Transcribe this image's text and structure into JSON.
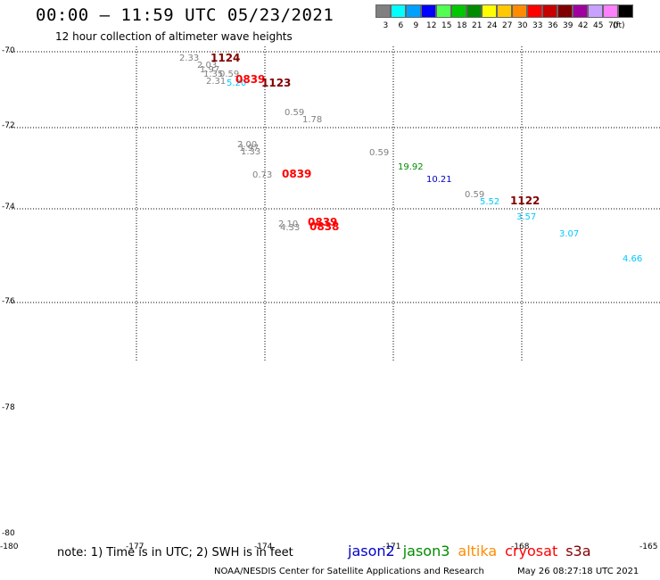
{
  "header": {
    "title": "00:00 – 11:59 UTC 05/23/2021",
    "subtitle": "12 hour collection of altimeter wave heights"
  },
  "colorbar": {
    "unit": "(ft)",
    "swatches": [
      {
        "color": "#808080",
        "label": "3"
      },
      {
        "color": "#00ffff",
        "label": "6"
      },
      {
        "color": "#00a0ff",
        "label": "9"
      },
      {
        "color": "#0000ff",
        "label": "12"
      },
      {
        "color": "#50ff50",
        "label": "15"
      },
      {
        "color": "#00c800",
        "label": "18"
      },
      {
        "color": "#008c00",
        "label": "21"
      },
      {
        "color": "#ffff00",
        "label": "24"
      },
      {
        "color": "#ffc800",
        "label": "27"
      },
      {
        "color": "#ff8c00",
        "label": "30"
      },
      {
        "color": "#ff0000",
        "label": "33"
      },
      {
        "color": "#c80000",
        "label": "36"
      },
      {
        "color": "#800000",
        "label": "39"
      },
      {
        "color": "#a000a0",
        "label": "42"
      },
      {
        "color": "#c8a0ff",
        "label": "45"
      },
      {
        "color": "#ff80ff",
        "label": "70"
      },
      {
        "color": "#000000",
        "label": ""
      }
    ]
  },
  "axes": {
    "y_labels": [
      "-70",
      "-72",
      "-74",
      "-76",
      "-78",
      "-80"
    ],
    "x_labels": [
      "-180",
      "-177",
      "-174",
      "-171",
      "-168",
      "-165"
    ]
  },
  "observations": [
    {
      "text": "2.33",
      "color": "#808080",
      "kind": "swh"
    },
    {
      "text": "1124",
      "color": "#800000",
      "kind": "time"
    },
    {
      "text": "2.03",
      "color": "#808080",
      "kind": "swh"
    },
    {
      "text": "1.97",
      "color": "#808080",
      "kind": "swh"
    },
    {
      "text": "1.35",
      "color": "#808080",
      "kind": "swh"
    },
    {
      "text": "0.59",
      "color": "#808080",
      "kind": "swh"
    },
    {
      "text": "2.31",
      "color": "#808080",
      "kind": "swh"
    },
    {
      "text": "5.20",
      "color": "#00c8ff",
      "kind": "swh"
    },
    {
      "text": "0839",
      "color": "#ff0000",
      "kind": "time"
    },
    {
      "text": "1123",
      "color": "#800000",
      "kind": "time"
    },
    {
      "text": "0.59",
      "color": "#808080",
      "kind": "swh"
    },
    {
      "text": "1.78",
      "color": "#808080",
      "kind": "swh"
    },
    {
      "text": "2.00",
      "color": "#808080",
      "kind": "swh"
    },
    {
      "text": "1.97",
      "color": "#808080",
      "kind": "swh"
    },
    {
      "text": "1.33",
      "color": "#808080",
      "kind": "swh"
    },
    {
      "text": "0.59",
      "color": "#808080",
      "kind": "swh"
    },
    {
      "text": "19.92",
      "color": "#008c00",
      "kind": "swh"
    },
    {
      "text": "0.73",
      "color": "#808080",
      "kind": "swh"
    },
    {
      "text": "0839",
      "color": "#ff0000",
      "kind": "time"
    },
    {
      "text": "10.21",
      "color": "#0000c8",
      "kind": "swh"
    },
    {
      "text": "0.59",
      "color": "#808080",
      "kind": "swh"
    },
    {
      "text": "5.52",
      "color": "#00c8ff",
      "kind": "swh"
    },
    {
      "text": "1122",
      "color": "#800000",
      "kind": "time"
    },
    {
      "text": "3.57",
      "color": "#00c8ff",
      "kind": "swh"
    },
    {
      "text": "2.10",
      "color": "#808080",
      "kind": "swh"
    },
    {
      "text": "4.33",
      "color": "#808080",
      "kind": "swh"
    },
    {
      "text": "0839",
      "color": "#ff0000",
      "kind": "time"
    },
    {
      "text": "0838",
      "color": "#ff0000",
      "kind": "time"
    },
    {
      "text": "3.07",
      "color": "#00c8ff",
      "kind": "swh"
    },
    {
      "text": "4.66",
      "color": "#00c8ff",
      "kind": "swh"
    }
  ],
  "footer": {
    "note": "note: 1) Time is in UTC; 2) SWH is in feet",
    "legend": [
      {
        "label": "jason2",
        "color": "#0000c8"
      },
      {
        "label": "jason3",
        "color": "#008c00"
      },
      {
        "label": "altika",
        "color": "#ff8c00"
      },
      {
        "label": "cryosat",
        "color": "#ff0000"
      },
      {
        "label": "s3a",
        "color": "#800000"
      }
    ],
    "credit": "NOAA/NESDIS Center for Satellite Applications and Research",
    "timestamp": "May 26 08:27:18 UTC 2021"
  }
}
